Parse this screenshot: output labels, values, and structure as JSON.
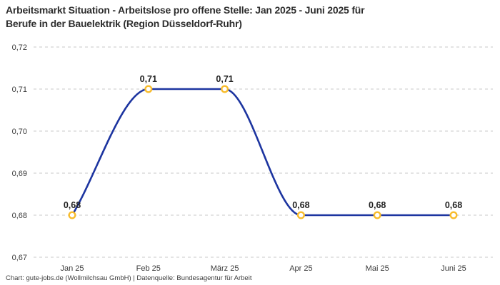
{
  "header": {
    "title": "Arbeitsmarkt Situation - Arbeitslose pro offene Stelle: Jan 2025 - Juni 2025 für\nBerufe in der Bauelektrik (Region Düsseldorf-Ruhr)"
  },
  "footer": {
    "attribution": "Chart: gute-jobs.de (Wollmilchsau GmbH) | Datenquelle: Bundesagentur für Arbeit"
  },
  "colors": {
    "background": "#ffffff",
    "line": "#1d35a0",
    "marker_ring": "#f8bc2c",
    "marker_fill": "#ffffff",
    "grid": "#c8c8c8",
    "title_text": "#2e2e2e",
    "axis_text": "#3a3a3a",
    "point_label_text": "#222222",
    "footer_text": "#3d3d3d"
  },
  "chart_data": {
    "type": "line",
    "title": "Arbeitsmarkt Situation - Arbeitslose pro offene Stelle: Jan 2025 - Juni 2025 für Berufe in der Bauelektrik (Region Düsseldorf-Ruhr)",
    "categories": [
      "Jan 25",
      "Feb 25",
      "März 25",
      "Apr 25",
      "Mai 25",
      "Juni 25"
    ],
    "values": [
      0.68,
      0.71,
      0.71,
      0.68,
      0.68,
      0.68
    ],
    "value_labels": [
      "0,68",
      "0,71",
      "0,71",
      "0,68",
      "0,68",
      "0,68"
    ],
    "y_ticks": [
      0.72,
      0.71,
      0.7,
      0.69,
      0.68,
      0.67
    ],
    "y_tick_labels": [
      "0,72",
      "0,71",
      "0,70",
      "0,69",
      "0,68",
      "0,67"
    ],
    "ylim": [
      0.67,
      0.72
    ],
    "xlabel": "",
    "ylabel": "",
    "grid": "dashed-horizontal",
    "legend": "none",
    "line_style": "smooth-monotone"
  }
}
